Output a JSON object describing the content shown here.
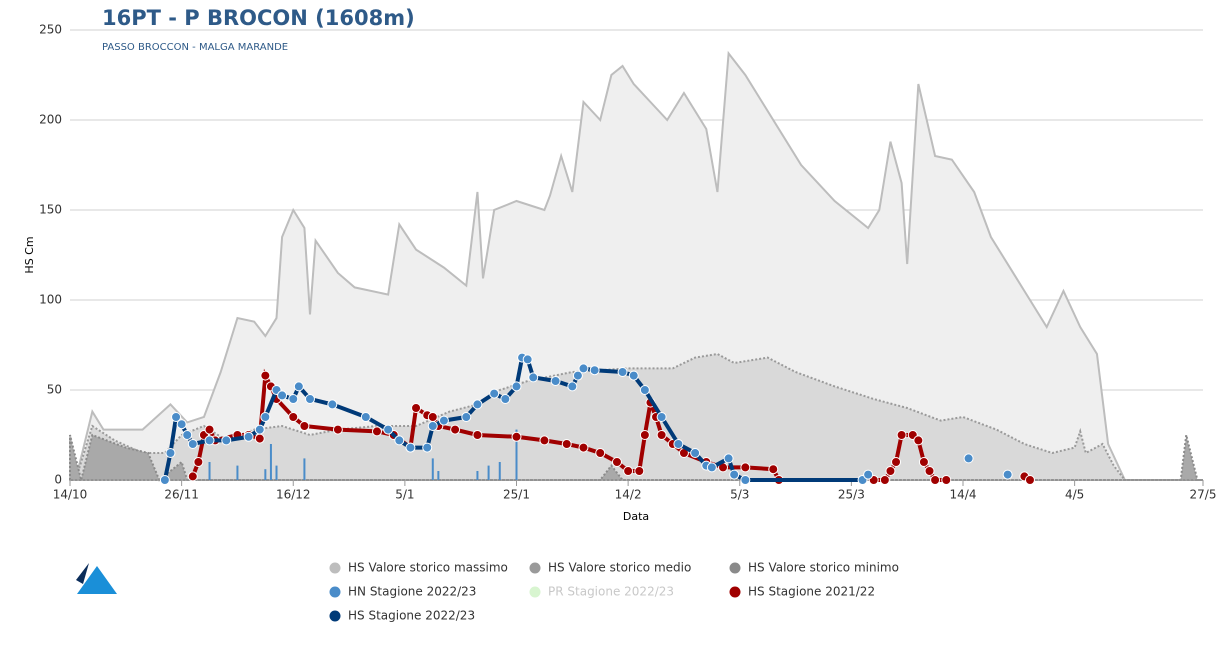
{
  "chart_data": {
    "type": "line",
    "title": "16PT - P BROCON (1608m)",
    "subtitle": "PASSO BROCCON - MALGA MARANDE",
    "x_label": "Data",
    "y_label": "HS Cm",
    "xlim": [
      0,
      203
    ],
    "xticks": [
      {
        "value": 0,
        "label": "14/10"
      },
      {
        "value": 20,
        "label": "26/11"
      },
      {
        "value": 40,
        "label": "16/12"
      },
      {
        "value": 60,
        "label": "5/1"
      },
      {
        "value": 80,
        "label": "25/1"
      },
      {
        "value": 100,
        "label": "14/2"
      },
      {
        "value": 120,
        "label": "5/3"
      },
      {
        "value": 140,
        "label": "25/3"
      },
      {
        "value": 160,
        "label": "14/4"
      },
      {
        "value": 180,
        "label": "4/5"
      },
      {
        "value": 203,
        "label": "27/5"
      }
    ],
    "ylim": [
      0,
      250
    ],
    "yticks": [
      0,
      50,
      100,
      150,
      200,
      250
    ],
    "grid": true,
    "series": [
      {
        "name": "HS Valore storico massimo",
        "type": "area",
        "color": "#bdbdbd",
        "fill": "#efefef",
        "x": [
          0,
          1,
          4,
          6,
          9,
          13,
          18,
          21,
          24,
          27,
          30,
          33,
          35,
          37,
          38,
          40,
          42,
          43,
          44,
          48,
          51,
          57,
          59,
          62,
          67,
          71,
          73,
          74,
          76,
          80,
          85,
          86,
          88,
          90,
          92,
          95,
          97,
          99,
          101,
          104,
          107,
          110,
          114,
          116,
          118,
          121,
          124,
          131,
          137,
          143,
          145,
          147,
          149,
          150,
          152,
          155,
          158,
          162,
          165,
          171,
          175,
          178,
          181,
          184,
          186,
          189,
          203
        ],
        "values": [
          25,
          0,
          38,
          28,
          28,
          28,
          42,
          32,
          35,
          60,
          90,
          88,
          80,
          90,
          135,
          150,
          140,
          92,
          133,
          115,
          107,
          103,
          142,
          128,
          118,
          108,
          160,
          112,
          150,
          155,
          150,
          158,
          180,
          160,
          210,
          200,
          225,
          230,
          220,
          210,
          200,
          215,
          195,
          160,
          237,
          225,
          210,
          175,
          155,
          140,
          150,
          188,
          165,
          120,
          220,
          180,
          178,
          160,
          135,
          105,
          85,
          105,
          85,
          70,
          20,
          0,
          0
        ]
      },
      {
        "name": "HS Valore storico medio",
        "type": "area",
        "color": "#9a9a9a",
        "fill": "#d9d9d9",
        "x": [
          0,
          1,
          4,
          8,
          13,
          17,
          20,
          24,
          28,
          33,
          38,
          43,
          48,
          55,
          62,
          68,
          73,
          77,
          82,
          90,
          100,
          108,
          112,
          116,
          119,
          125,
          130,
          137,
          144,
          150,
          156,
          160,
          166,
          171,
          176,
          180,
          181,
          182,
          185,
          187,
          189,
          203
        ],
        "values": [
          22,
          0,
          30,
          22,
          15,
          15,
          25,
          30,
          22,
          28,
          30,
          25,
          28,
          30,
          30,
          38,
          42,
          50,
          55,
          60,
          62,
          62,
          68,
          70,
          65,
          68,
          60,
          52,
          45,
          40,
          33,
          35,
          28,
          20,
          15,
          18,
          27,
          15,
          20,
          8,
          0,
          0
        ]
      },
      {
        "name": "HS Valore storico minimo",
        "type": "area",
        "color": "#8a8a8a",
        "fill": "#a9a9a9",
        "x": [
          0,
          2,
          4,
          10,
          14,
          16,
          20,
          21,
          95,
          97,
          99,
          199,
          200,
          202,
          203
        ],
        "values": [
          25,
          0,
          25,
          18,
          15,
          0,
          10,
          0,
          0,
          8,
          0,
          0,
          25,
          0,
          0
        ]
      },
      {
        "name": "HN Stagione 2022/23",
        "type": "bar",
        "color": "#4a8cc9",
        "x": [
          25,
          30,
          35,
          36,
          37,
          42,
          65,
          66,
          73,
          75,
          77,
          80
        ],
        "values": [
          10,
          8,
          6,
          20,
          8,
          12,
          12,
          5,
          5,
          8,
          10,
          28
        ]
      },
      {
        "name": "PR Stagione 2022/23",
        "type": "bar",
        "color": "#d8f5d0",
        "hidden": true,
        "x": [],
        "values": []
      },
      {
        "name": "HS Stagione 2021/22",
        "type": "line",
        "color": "#a00000",
        "marker_color": "#a00000",
        "x": [
          22,
          23,
          24,
          25,
          26,
          30,
          32,
          34,
          35,
          36,
          37,
          40,
          42,
          48,
          55,
          58,
          61,
          62,
          64,
          65,
          66,
          69,
          73,
          80,
          85,
          89,
          92,
          95,
          98,
          100,
          102,
          103,
          104,
          105,
          106,
          108,
          110,
          114,
          117,
          121,
          126,
          127,
          135,
          144,
          146,
          147,
          148,
          149,
          151,
          152,
          153,
          154,
          155,
          157,
          165,
          171,
          172
        ],
        "values": [
          2,
          10,
          25,
          28,
          22,
          25,
          25,
          23,
          58,
          52,
          45,
          35,
          30,
          28,
          27,
          25,
          18,
          40,
          36,
          35,
          30,
          28,
          25,
          24,
          22,
          20,
          18,
          15,
          10,
          5,
          5,
          25,
          43,
          35,
          25,
          20,
          15,
          10,
          7,
          7,
          6,
          0,
          null,
          0,
          0,
          5,
          10,
          25,
          25,
          22,
          10,
          5,
          0,
          0,
          null,
          2,
          0
        ]
      },
      {
        "name": "HS Stagione 2022/23",
        "type": "line",
        "color": "#003a78",
        "marker_color": "#4a8cc9",
        "x": [
          17,
          18,
          19,
          20,
          21,
          22,
          25,
          28,
          32,
          34,
          35,
          37,
          38,
          40,
          41,
          43,
          47,
          53,
          57,
          59,
          61,
          64,
          65,
          67,
          71,
          73,
          76,
          78,
          80,
          81,
          82,
          83,
          87,
          90,
          91,
          92,
          94,
          99,
          101,
          103,
          106,
          109,
          112,
          114,
          115,
          118,
          119,
          121,
          142,
          143,
          152,
          161,
          165,
          168
        ],
        "values": [
          0,
          15,
          35,
          31,
          25,
          20,
          22,
          22,
          24,
          28,
          35,
          50,
          47,
          45,
          52,
          45,
          42,
          35,
          28,
          22,
          18,
          18,
          30,
          33,
          35,
          42,
          48,
          45,
          52,
          68,
          67,
          57,
          55,
          52,
          58,
          62,
          61,
          60,
          58,
          50,
          35,
          20,
          15,
          8,
          7,
          12,
          3,
          0,
          0,
          3,
          null,
          12,
          null,
          3
        ]
      }
    ]
  }
}
